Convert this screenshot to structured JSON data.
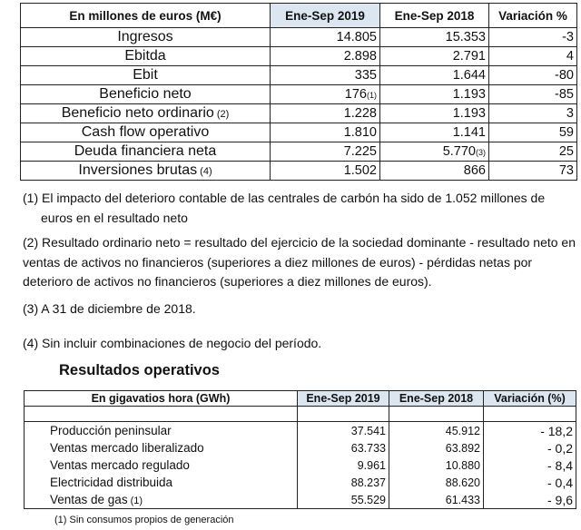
{
  "table1": {
    "headers": [
      "En millones de euros (M€)",
      "Ene-Sep 2019",
      "Ene-Sep 2018",
      "Variación %"
    ],
    "rows": [
      {
        "label": "Ingresos",
        "note": "",
        "v2019": "14.805",
        "v2019_note": "",
        "v2018": "15.353",
        "v2018_note": "",
        "var": "-3"
      },
      {
        "label": "Ebitda",
        "note": "",
        "v2019": "2.898",
        "v2019_note": "",
        "v2018": "2.791",
        "v2018_note": "",
        "var": "4"
      },
      {
        "label": "Ebit",
        "note": "",
        "v2019": "335",
        "v2019_note": "",
        "v2018": "1.644",
        "v2018_note": "",
        "var": "-80"
      },
      {
        "label": "Beneficio neto",
        "note": "",
        "v2019": "176",
        "v2019_note": "(1)",
        "v2018": "1.193",
        "v2018_note": "",
        "var": "-85"
      },
      {
        "label": "Beneficio neto ordinario",
        "note": "(2)",
        "v2019": "1.228",
        "v2019_note": "",
        "v2018": "1.193",
        "v2018_note": "",
        "var": "3"
      },
      {
        "label": "Cash flow operativo",
        "note": "",
        "v2019": "1.810",
        "v2019_note": "",
        "v2018": "1.141",
        "v2018_note": "",
        "var": "59"
      },
      {
        "label": "Deuda financiera neta",
        "note": "",
        "v2019": "7.225",
        "v2019_note": "",
        "v2018": "5.770",
        "v2018_note": "(3)",
        "var": "25"
      },
      {
        "label": "Inversiones brutas",
        "note": "(4)",
        "v2019": "1.502",
        "v2019_note": "",
        "v2018": "866",
        "v2018_note": "",
        "var": "73"
      }
    ]
  },
  "notes": [
    "(1) El impacto del deterioro contable de las centrales de carbón ha sido de 1.052 millones de euros en el resultado neto",
    "(2) Resultado ordinario neto = resultado del ejercicio de la sociedad dominante - resultado neto en ventas de activos no financieros (superiores a diez millones de euros) - pérdidas netas por deterioro de activos no financieros (superiores a diez millones de euros).",
    "(3) A 31 de diciembre de 2018.",
    "(4) Sin incluir combinaciones de negocio del período."
  ],
  "section2_title": "Resultados operativos",
  "table2": {
    "headers": [
      "En gigavatios hora (GWh)",
      "Ene-Sep 2019",
      "Ene-Sep 2018",
      "Variación (%)"
    ],
    "rows": [
      {
        "label": "Producción peninsular",
        "note": "",
        "v2019": "37.541",
        "v2018": "45.912",
        "var": "- 18,2"
      },
      {
        "label": "Ventas mercado liberalizado",
        "note": "",
        "v2019": "63.733",
        "v2018": "63.892",
        "var": "- 0,2"
      },
      {
        "label": "Ventas mercado regulado",
        "note": "",
        "v2019": "9.961",
        "v2018": "10.880",
        "var": "- 8,4"
      },
      {
        "label": "Electricidad distribuida",
        "note": "",
        "v2019": "88.237",
        "v2018": "88.620",
        "var": "- 0,4"
      },
      {
        "label": "Ventas de gas",
        "note": "(1)",
        "v2019": "55.529",
        "v2018": "61.433",
        "var": "- 9,6"
      }
    ],
    "footnote": "(1) Sin consumos propios de generación"
  },
  "colors": {
    "header_highlight": "#dce6f1",
    "border": "#222222"
  }
}
